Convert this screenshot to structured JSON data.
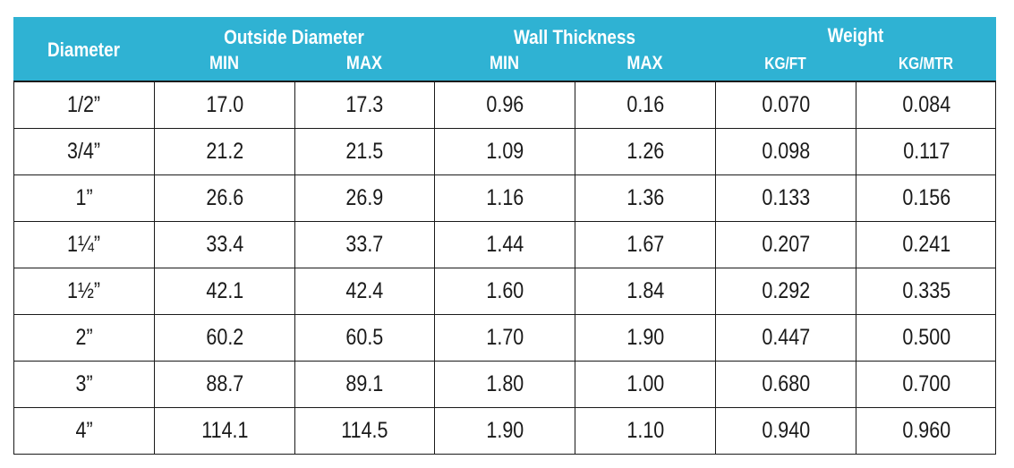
{
  "header": {
    "diameter": "Diameter",
    "outside_diameter": "Outside Diameter",
    "wall_thickness": "Wall Thickness",
    "weight": "Weight",
    "od_min": "MIN",
    "od_max": "MAX",
    "wt_min": "MIN",
    "wt_max": "MAX",
    "kg_ft": "KG/FT",
    "kg_mtr": "KG/MTR"
  },
  "rows": [
    {
      "diameter": "1/2”",
      "od_min": "17.0",
      "od_max": "17.3",
      "wt_min": "0.96",
      "wt_max": "0.16",
      "kg_ft": "0.070",
      "kg_mtr": "0.084"
    },
    {
      "diameter": "3/4”",
      "od_min": "21.2",
      "od_max": "21.5",
      "wt_min": "1.09",
      "wt_max": "1.26",
      "kg_ft": "0.098",
      "kg_mtr": "0.117"
    },
    {
      "diameter": "1”",
      "od_min": "26.6",
      "od_max": "26.9",
      "wt_min": "1.16",
      "wt_max": "1.36",
      "kg_ft": "0.133",
      "kg_mtr": "0.156"
    },
    {
      "diameter": "1¼”",
      "od_min": "33.4",
      "od_max": "33.7",
      "wt_min": "1.44",
      "wt_max": "1.67",
      "kg_ft": "0.207",
      "kg_mtr": "0.241"
    },
    {
      "diameter": "1½”",
      "od_min": "42.1",
      "od_max": "42.4",
      "wt_min": "1.60",
      "wt_max": "1.84",
      "kg_ft": "0.292",
      "kg_mtr": "0.335"
    },
    {
      "diameter": "2”",
      "od_min": "60.2",
      "od_max": "60.5",
      "wt_min": "1.70",
      "wt_max": "1.90",
      "kg_ft": "0.447",
      "kg_mtr": "0.500"
    },
    {
      "diameter": "3”",
      "od_min": "88.7",
      "od_max": "89.1",
      "wt_min": "1.80",
      "wt_max": "1.00",
      "kg_ft": "0.680",
      "kg_mtr": "0.700"
    },
    {
      "diameter": "4”",
      "od_min": "114.1",
      "od_max": "114.5",
      "wt_min": "1.90",
      "wt_max": "1.10",
      "kg_ft": "0.940",
      "kg_mtr": "0.960"
    }
  ],
  "colors": {
    "header_background": "#2fb2d3",
    "header_text": "#ffffff",
    "body_text": "#1a1a1a",
    "grid_lines": "#1a1a1a"
  }
}
